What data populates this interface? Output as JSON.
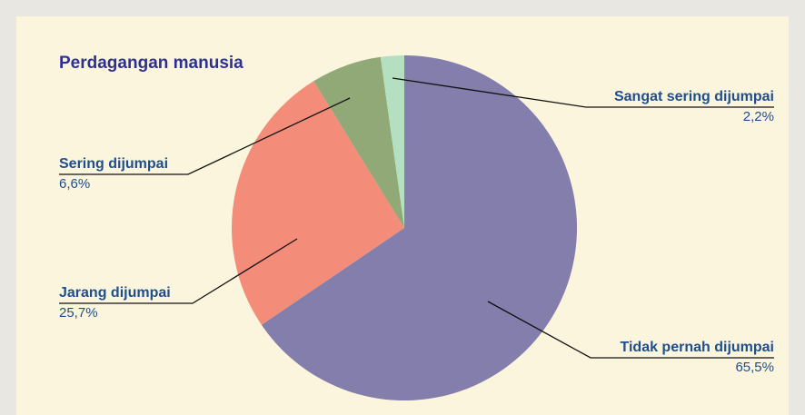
{
  "chart_data": {
    "type": "pie",
    "title": "Perdagangan manusia",
    "categories": [
      "Tidak pernah dijumpai",
      "Jarang dijumpai",
      "Sering dijumpai",
      "Sangat sering dijumpai"
    ],
    "values": [
      65.5,
      25.7,
      6.6,
      2.2
    ],
    "value_labels": [
      "65,5%",
      "25,7%",
      "6,6%",
      "2,2%"
    ],
    "colors": [
      "#837eab",
      "#f38c78",
      "#91a877",
      "#b4dfc0"
    ]
  }
}
